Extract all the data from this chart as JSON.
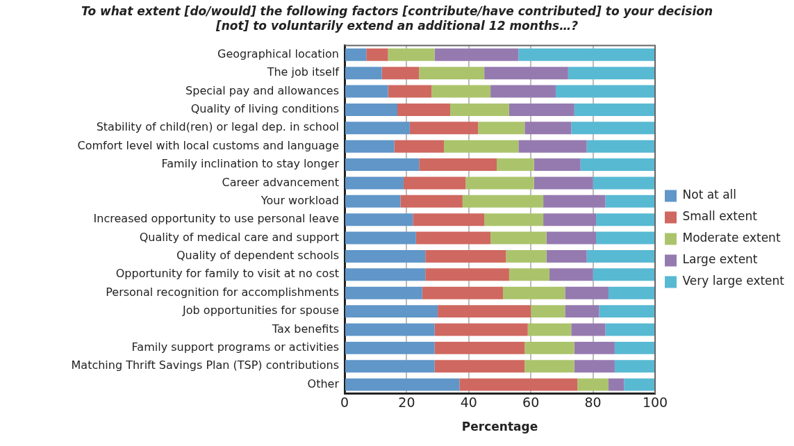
{
  "chart_data": {
    "type": "bar",
    "orientation": "horizontal",
    "stacked": true,
    "title": "To what extent [do/would] the following factors [contribute/have contributed] to your decision [not] to voluntarily extend an additional 12 months…?",
    "xlabel": "Percentage",
    "categories": [
      "Geographical location",
      "The job itself",
      "Special pay and allowances",
      "Quality of living conditions",
      "Stability of child(ren) or legal dep. in school",
      "Comfort level with local customs and language",
      "Family inclination to stay longer",
      "Career advancement",
      "Your workload",
      "Increased opportunity to use personal leave",
      "Quality of medical care and support",
      "Quality of dependent schools",
      "Opportunity for family to visit at no cost",
      "Personal recognition for accomplishments",
      "Job opportunities for spouse",
      "Tax benefits",
      "Family support programs or activities",
      "Matching Thrift Savings Plan (TSP) contributions",
      "Other"
    ],
    "series": [
      {
        "name": "Not at all",
        "color": "#6096c8",
        "values": [
          7,
          12,
          14,
          17,
          21,
          16,
          24,
          19,
          18,
          22,
          23,
          26,
          26,
          25,
          30,
          29,
          29,
          29,
          37
        ]
      },
      {
        "name": "Small extent",
        "color": "#cf6860",
        "values": [
          7,
          12,
          14,
          17,
          22,
          16,
          25,
          20,
          20,
          23,
          24,
          26,
          27,
          26,
          30,
          30,
          29,
          29,
          38
        ]
      },
      {
        "name": "Moderate extent",
        "color": "#abc46c",
        "values": [
          15,
          21,
          19,
          19,
          15,
          24,
          12,
          22,
          26,
          19,
          18,
          13,
          13,
          20,
          11,
          14,
          16,
          16,
          10
        ]
      },
      {
        "name": "Large extent",
        "color": "#957ab0",
        "values": [
          27,
          27,
          21,
          21,
          15,
          22,
          15,
          19,
          20,
          17,
          16,
          13,
          14,
          14,
          11,
          11,
          13,
          13,
          5
        ]
      },
      {
        "name": "Very large extent",
        "color": "#58b9d3",
        "values": [
          44,
          28,
          32,
          26,
          27,
          22,
          24,
          20,
          16,
          19,
          19,
          22,
          20,
          15,
          18,
          16,
          13,
          13,
          10
        ]
      }
    ],
    "xlim": [
      0,
      100
    ],
    "xticks": [
      0,
      20,
      40,
      60,
      80,
      100
    ],
    "grid": "x",
    "legend": "right"
  }
}
